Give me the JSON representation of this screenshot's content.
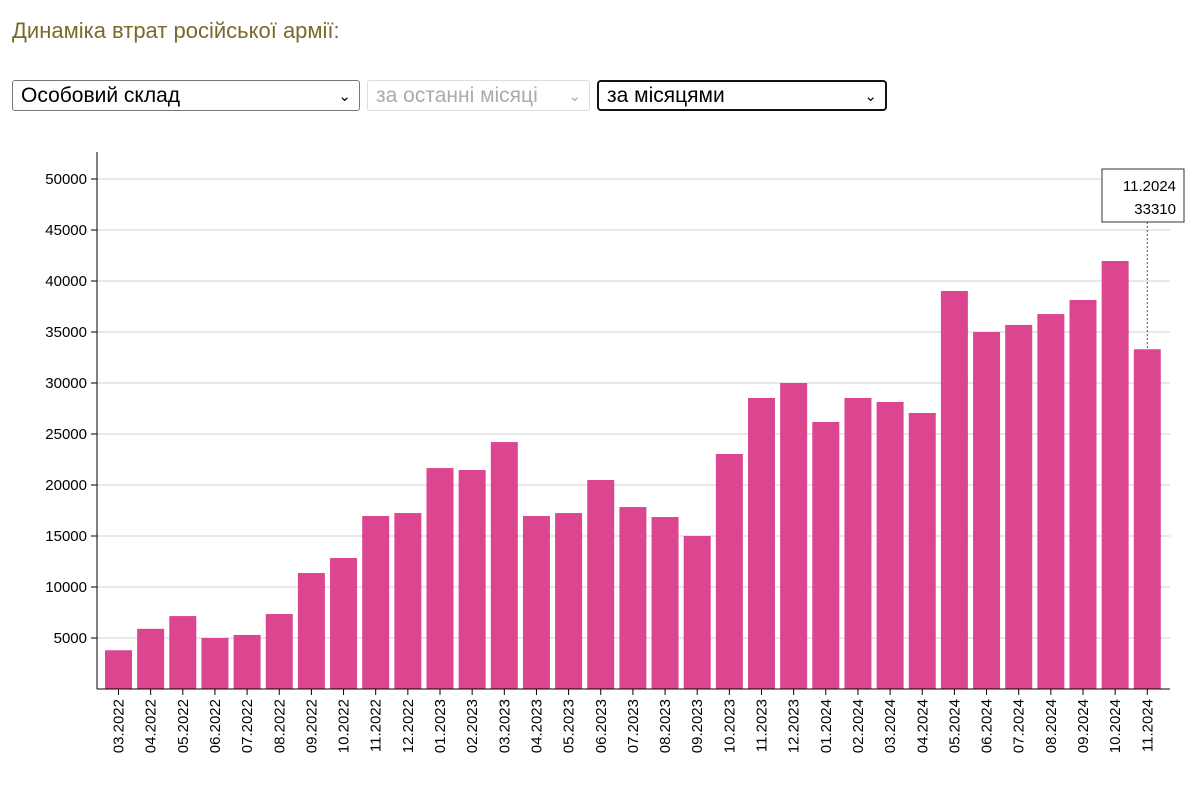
{
  "header": {
    "title": "Динаміка втрат російської армії:"
  },
  "controls": {
    "category_select": "Особовий склад",
    "period_select": "за останні місяці",
    "grouping_select": "за місяцями"
  },
  "tooltip": {
    "label": "11.2024",
    "value": "33310"
  },
  "chart_data": {
    "type": "bar",
    "title": "Динаміка втрат російської армії:",
    "xlabel": "",
    "ylabel": "",
    "ylim": [
      0,
      52000
    ],
    "yticks": [
      5000,
      10000,
      15000,
      20000,
      25000,
      30000,
      35000,
      40000,
      45000,
      50000
    ],
    "grid": true,
    "color": "#dc4590",
    "categories": [
      "03.2022",
      "04.2022",
      "05.2022",
      "06.2022",
      "07.2022",
      "08.2022",
      "09.2022",
      "10.2022",
      "11.2022",
      "12.2022",
      "01.2023",
      "02.2023",
      "03.2023",
      "04.2023",
      "05.2023",
      "06.2023",
      "07.2023",
      "08.2023",
      "09.2023",
      "10.2023",
      "11.2023",
      "12.2023",
      "01.2024",
      "02.2024",
      "03.2024",
      "04.2024",
      "05.2024",
      "06.2024",
      "07.2024",
      "08.2024",
      "09.2024",
      "10.2024",
      "11.2024"
    ],
    "values": [
      3800,
      5900,
      7150,
      5000,
      5300,
      7350,
      11370,
      12840,
      16960,
      17250,
      21660,
      21470,
      24210,
      16960,
      17250,
      20490,
      17840,
      16860,
      15000,
      23040,
      28530,
      30000,
      26180,
      28530,
      28140,
      27060,
      39020,
      35000,
      35690,
      36760,
      38140,
      41960,
      33310
    ]
  }
}
